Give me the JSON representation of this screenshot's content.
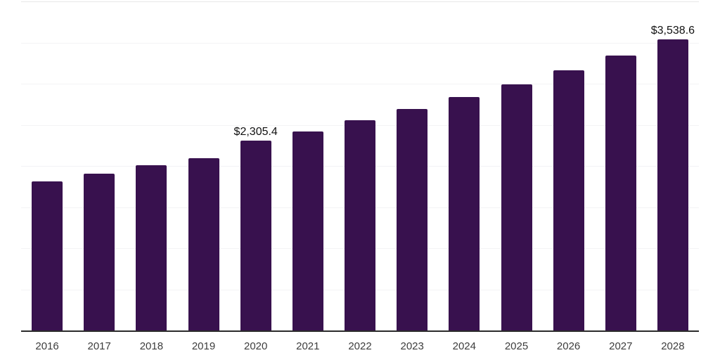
{
  "chart_data": {
    "type": "bar",
    "title": "",
    "xlabel": "",
    "ylabel": "",
    "categories": [
      "2016",
      "2017",
      "2018",
      "2019",
      "2020",
      "2021",
      "2022",
      "2023",
      "2024",
      "2025",
      "2026",
      "2027",
      "2028"
    ],
    "values": [
      1810,
      1906,
      2005,
      2092,
      2305.4,
      2422,
      2559,
      2697,
      2834,
      2990,
      3164,
      3339,
      3538.6
    ],
    "point_labels": [
      "",
      "",
      "",
      "",
      "$2,305.4",
      "",
      "",
      "",
      "",
      "",
      "",
      "",
      "$3,538.6"
    ],
    "ylim": [
      0,
      4000
    ],
    "gridline_step": 500,
    "grid": "horizontal-only",
    "legend": "none",
    "y_axis_tick_labels_visible": false,
    "bar_color": "#38114E",
    "axis_color": "#2B2B2B",
    "gridline_color": "#F3F3F5",
    "top_border_color": "#E8E8E8",
    "tick_label_color": "#3D3D3D",
    "value_label_color": "#111111"
  }
}
